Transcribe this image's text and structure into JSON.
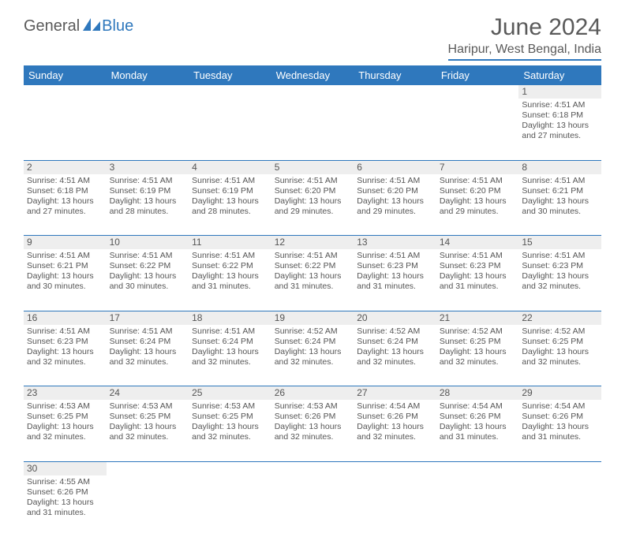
{
  "logo": {
    "word1": "General",
    "word2": "Blue"
  },
  "header": {
    "title": "June 2024",
    "location": "Haripur, West Bengal, India"
  },
  "colors": {
    "accent": "#2f78bd",
    "header_bg": "#2f78bd",
    "header_text": "#ffffff",
    "daynum_bg": "#eeeeee",
    "body_text": "#555555",
    "logo_gray": "#5a5a5a"
  },
  "typography": {
    "title_fontsize": 30,
    "location_fontsize": 16,
    "dayhead_fontsize": 13,
    "cell_fontsize": 10.5
  },
  "dayNames": [
    "Sunday",
    "Monday",
    "Tuesday",
    "Wednesday",
    "Thursday",
    "Friday",
    "Saturday"
  ],
  "weeks": [
    [
      null,
      null,
      null,
      null,
      null,
      null,
      {
        "n": "1",
        "sr": "4:51 AM",
        "ss": "6:18 PM",
        "dl": "13 hours and 27 minutes."
      }
    ],
    [
      {
        "n": "2",
        "sr": "4:51 AM",
        "ss": "6:18 PM",
        "dl": "13 hours and 27 minutes."
      },
      {
        "n": "3",
        "sr": "4:51 AM",
        "ss": "6:19 PM",
        "dl": "13 hours and 28 minutes."
      },
      {
        "n": "4",
        "sr": "4:51 AM",
        "ss": "6:19 PM",
        "dl": "13 hours and 28 minutes."
      },
      {
        "n": "5",
        "sr": "4:51 AM",
        "ss": "6:20 PM",
        "dl": "13 hours and 29 minutes."
      },
      {
        "n": "6",
        "sr": "4:51 AM",
        "ss": "6:20 PM",
        "dl": "13 hours and 29 minutes."
      },
      {
        "n": "7",
        "sr": "4:51 AM",
        "ss": "6:20 PM",
        "dl": "13 hours and 29 minutes."
      },
      {
        "n": "8",
        "sr": "4:51 AM",
        "ss": "6:21 PM",
        "dl": "13 hours and 30 minutes."
      }
    ],
    [
      {
        "n": "9",
        "sr": "4:51 AM",
        "ss": "6:21 PM",
        "dl": "13 hours and 30 minutes."
      },
      {
        "n": "10",
        "sr": "4:51 AM",
        "ss": "6:22 PM",
        "dl": "13 hours and 30 minutes."
      },
      {
        "n": "11",
        "sr": "4:51 AM",
        "ss": "6:22 PM",
        "dl": "13 hours and 31 minutes."
      },
      {
        "n": "12",
        "sr": "4:51 AM",
        "ss": "6:22 PM",
        "dl": "13 hours and 31 minutes."
      },
      {
        "n": "13",
        "sr": "4:51 AM",
        "ss": "6:23 PM",
        "dl": "13 hours and 31 minutes."
      },
      {
        "n": "14",
        "sr": "4:51 AM",
        "ss": "6:23 PM",
        "dl": "13 hours and 31 minutes."
      },
      {
        "n": "15",
        "sr": "4:51 AM",
        "ss": "6:23 PM",
        "dl": "13 hours and 32 minutes."
      }
    ],
    [
      {
        "n": "16",
        "sr": "4:51 AM",
        "ss": "6:23 PM",
        "dl": "13 hours and 32 minutes."
      },
      {
        "n": "17",
        "sr": "4:51 AM",
        "ss": "6:24 PM",
        "dl": "13 hours and 32 minutes."
      },
      {
        "n": "18",
        "sr": "4:51 AM",
        "ss": "6:24 PM",
        "dl": "13 hours and 32 minutes."
      },
      {
        "n": "19",
        "sr": "4:52 AM",
        "ss": "6:24 PM",
        "dl": "13 hours and 32 minutes."
      },
      {
        "n": "20",
        "sr": "4:52 AM",
        "ss": "6:24 PM",
        "dl": "13 hours and 32 minutes."
      },
      {
        "n": "21",
        "sr": "4:52 AM",
        "ss": "6:25 PM",
        "dl": "13 hours and 32 minutes."
      },
      {
        "n": "22",
        "sr": "4:52 AM",
        "ss": "6:25 PM",
        "dl": "13 hours and 32 minutes."
      }
    ],
    [
      {
        "n": "23",
        "sr": "4:53 AM",
        "ss": "6:25 PM",
        "dl": "13 hours and 32 minutes."
      },
      {
        "n": "24",
        "sr": "4:53 AM",
        "ss": "6:25 PM",
        "dl": "13 hours and 32 minutes."
      },
      {
        "n": "25",
        "sr": "4:53 AM",
        "ss": "6:25 PM",
        "dl": "13 hours and 32 minutes."
      },
      {
        "n": "26",
        "sr": "4:53 AM",
        "ss": "6:26 PM",
        "dl": "13 hours and 32 minutes."
      },
      {
        "n": "27",
        "sr": "4:54 AM",
        "ss": "6:26 PM",
        "dl": "13 hours and 32 minutes."
      },
      {
        "n": "28",
        "sr": "4:54 AM",
        "ss": "6:26 PM",
        "dl": "13 hours and 31 minutes."
      },
      {
        "n": "29",
        "sr": "4:54 AM",
        "ss": "6:26 PM",
        "dl": "13 hours and 31 minutes."
      }
    ],
    [
      {
        "n": "30",
        "sr": "4:55 AM",
        "ss": "6:26 PM",
        "dl": "13 hours and 31 minutes."
      },
      null,
      null,
      null,
      null,
      null,
      null
    ]
  ],
  "labels": {
    "sunrise": "Sunrise:",
    "sunset": "Sunset:",
    "daylight": "Daylight:"
  }
}
